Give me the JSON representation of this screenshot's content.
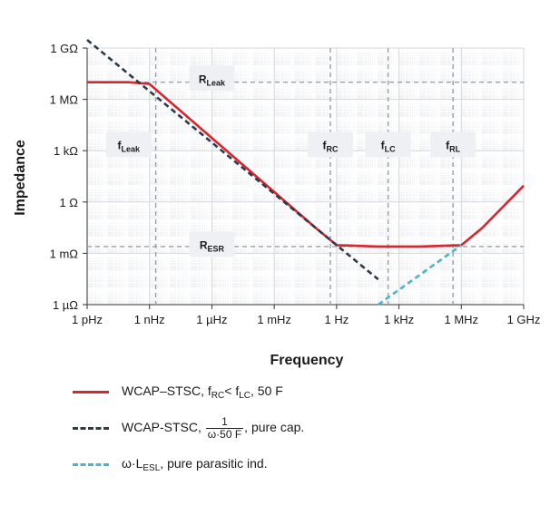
{
  "chart_data": {
    "type": "line",
    "xlabel": "Frequency",
    "ylabel": "Impedance",
    "x_ticks": [
      "1 pHz",
      "1 nHz",
      "1 µHz",
      "1 mHz",
      "1 Hz",
      "1 kHz",
      "1 MHz",
      "1 GHz"
    ],
    "y_ticks": [
      "1 GΩ",
      "1 MΩ",
      "1 kΩ",
      "1 Ω",
      "1 mΩ",
      "1 µΩ"
    ],
    "x_scale": "log",
    "y_scale": "log",
    "xlim": [
      1e-12,
      1000000000.0
    ],
    "ylim": [
      1e-06,
      1000000000.0
    ],
    "grid": true,
    "legend_position": "below",
    "series": [
      {
        "name": "WCAP–STSC, fRC< fLC, 50 F",
        "color": "#d7262e",
        "style": "solid",
        "x": [
          1e-12,
          1e-10,
          1e-09,
          0.1,
          1.0,
          100.0,
          10000.0,
          1000000.0,
          10000000.0,
          1000000000.0
        ],
        "y": [
          10000000.0,
          10000000.0,
          8000000.0,
          0.03,
          0.003,
          0.0025,
          0.0025,
          0.003,
          0.03,
          9
        ]
      },
      {
        "name": "WCAP-STSC, 1/(ω·50 F), pure cap.",
        "color": "#2e3a48",
        "style": "dashed",
        "x": [
          1e-12,
          100.0
        ],
        "y": [
          3000000000.0,
          3e-05
        ]
      },
      {
        "name": "ω·LESL, pure parasitic ind.",
        "color": "#4bb4d0",
        "style": "dashed",
        "x": [
          100.0,
          1000000.0
        ],
        "y": [
          1e-06,
          0.003
        ]
      }
    ],
    "reference_lines": {
      "horizontal": [
        {
          "label": "RLeak",
          "y": 10000000.0
        },
        {
          "label": "RESR",
          "y": 0.0025
        }
      ],
      "vertical": [
        {
          "label": "fLeak",
          "x": 2e-09
        },
        {
          "label": "fRC",
          "x": 0.5
        },
        {
          "label": "fLC",
          "x": 300
        },
        {
          "label": "fRL",
          "x": 400000.0
        }
      ]
    },
    "annotations": [
      {
        "main": "R",
        "sub": "Leak",
        "x": 1e-06,
        "y": 15000000.0
      },
      {
        "main": "f",
        "sub": "Leak",
        "x": 1e-10,
        "y": 2000.0
      },
      {
        "main": "R",
        "sub": "ESR",
        "x": 1e-06,
        "y": 0.003
      },
      {
        "main": "f",
        "sub": "RC",
        "x": 0.5,
        "y": 2000.0
      },
      {
        "main": "f",
        "sub": "LC",
        "x": 300,
        "y": 2000.0
      },
      {
        "main": "f",
        "sub": "RL",
        "x": 400000.0,
        "y": 2000.0
      }
    ]
  },
  "legend": {
    "items": [
      {
        "prefix": "WCAP–STSC, f",
        "sub1": "RC",
        "mid": "< f",
        "sub2": "LC",
        "suffix": ", 50 F"
      },
      {
        "prefix": "WCAP-STSC, ",
        "num": "1",
        "den": "ω·50 F",
        "suffix": ", pure cap."
      },
      {
        "prefix": "ω·L",
        "sub1": "ESL",
        "suffix": ", pure parasitic ind."
      }
    ]
  }
}
